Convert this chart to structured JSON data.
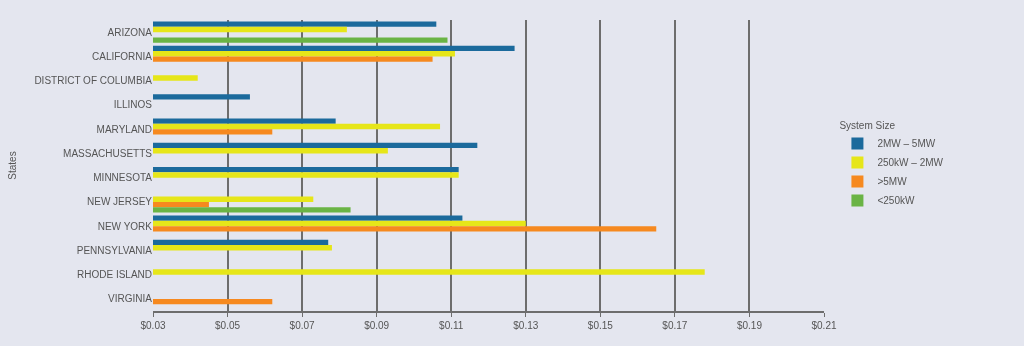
{
  "chart_data": {
    "type": "bar",
    "orientation": "horizontal",
    "ylabel": "States",
    "legend_title": "System Size",
    "legend": "right",
    "categories": [
      "ARIZONA",
      "CALIFORNIA",
      "DISTRICT OF COLUMBIA",
      "ILLINOS",
      "MARYLAND",
      "MASSACHUSETTS",
      "MINNESOTA",
      "NEW JERSEY",
      "NEW YORK",
      "PENNSYLVANIA",
      "RHODE ISLAND",
      "VIRGINIA"
    ],
    "series": [
      {
        "name": "2MW – 5MW",
        "color": "#1b6a9c",
        "values": [
          0.106,
          0.127,
          null,
          0.056,
          0.079,
          0.117,
          0.112,
          null,
          0.113,
          0.077,
          null,
          null
        ]
      },
      {
        "name": "250kW – 2MW",
        "color": "#e6e619",
        "values": [
          0.082,
          0.111,
          0.042,
          null,
          0.107,
          0.093,
          0.112,
          0.073,
          0.13,
          0.078,
          0.178,
          null
        ]
      },
      {
        "name": ">5MW",
        "color": "#f6891f",
        "values": [
          null,
          0.105,
          null,
          null,
          0.062,
          null,
          null,
          0.045,
          0.165,
          null,
          null,
          0.062
        ]
      },
      {
        "name": "<250kW",
        "color": "#6ab445",
        "values": [
          0.109,
          null,
          null,
          null,
          null,
          null,
          null,
          0.083,
          null,
          null,
          null,
          null
        ]
      }
    ],
    "xlim": [
      0.03,
      0.21
    ],
    "xticks": [
      {
        "value": 0.03,
        "label": "$0.03"
      },
      {
        "value": 0.05,
        "label": "$0.05"
      },
      {
        "value": 0.07,
        "label": "$0.07"
      },
      {
        "value": 0.09,
        "label": "$0.09"
      },
      {
        "value": 0.11,
        "label": "$0.11"
      },
      {
        "value": 0.13,
        "label": "$0.13"
      },
      {
        "value": 0.15,
        "label": "$0.15"
      },
      {
        "value": 0.17,
        "label": "$0.17"
      },
      {
        "value": 0.19,
        "label": "$0.19"
      },
      {
        "value": 0.21,
        "label": "$0.21"
      }
    ],
    "grid": "x"
  }
}
